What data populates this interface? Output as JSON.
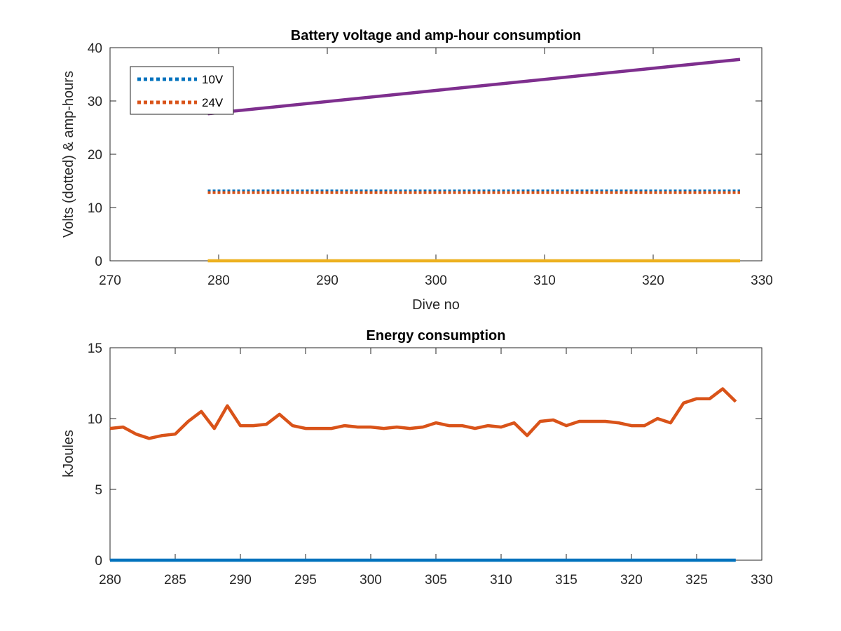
{
  "chart_data": [
    {
      "type": "line",
      "title": "Battery voltage and amp-hour consumption",
      "xlabel": "Dive no",
      "ylabel": "Volts (dotted) & amp-hours",
      "xlim": [
        270,
        330
      ],
      "ylim": [
        0,
        40
      ],
      "xticks": [
        270,
        280,
        290,
        300,
        310,
        320,
        330
      ],
      "yticks": [
        0,
        10,
        20,
        30,
        40
      ],
      "grid": false,
      "legend_position": "top-left",
      "series": [
        {
          "name": "10V",
          "style": "dotted",
          "color": "#0072BD",
          "x": [
            279,
            328
          ],
          "y": [
            13.1,
            13.1
          ]
        },
        {
          "name": "24V",
          "style": "dotted",
          "color": "#D95319",
          "x": [
            279,
            328
          ],
          "y": [
            12.8,
            12.8
          ]
        },
        {
          "style": "solid",
          "color": "#EDB120",
          "x": [
            279,
            328
          ],
          "y": [
            0,
            0
          ]
        },
        {
          "style": "solid",
          "color": "#7E2F8E",
          "x": [
            279,
            328
          ],
          "y": [
            27.6,
            37.8
          ]
        }
      ]
    },
    {
      "type": "line",
      "title": "Energy consumption",
      "xlabel": "",
      "ylabel": "kJoules",
      "xlim": [
        280,
        330
      ],
      "ylim": [
        0,
        15
      ],
      "xticks": [
        280,
        285,
        290,
        295,
        300,
        305,
        310,
        315,
        320,
        325,
        330
      ],
      "yticks": [
        0,
        5,
        10,
        15
      ],
      "grid": false,
      "series": [
        {
          "style": "solid",
          "color": "#0072BD",
          "x": [
            280,
            328
          ],
          "y": [
            0,
            0
          ]
        },
        {
          "style": "solid",
          "color": "#D95319",
          "x": [
            280,
            281,
            282,
            283,
            284,
            285,
            286,
            287,
            288,
            289,
            290,
            291,
            292,
            293,
            294,
            295,
            296,
            297,
            298,
            299,
            300,
            301,
            302,
            303,
            304,
            305,
            306,
            307,
            308,
            309,
            310,
            311,
            312,
            313,
            314,
            315,
            316,
            317,
            318,
            319,
            320,
            321,
            322,
            323,
            324,
            325,
            326,
            327,
            328
          ],
          "y": [
            9.3,
            9.4,
            8.9,
            8.6,
            8.8,
            8.9,
            9.8,
            10.5,
            9.3,
            10.9,
            9.5,
            9.5,
            9.6,
            10.3,
            9.5,
            9.3,
            9.3,
            9.3,
            9.5,
            9.4,
            9.4,
            9.3,
            9.4,
            9.3,
            9.4,
            9.7,
            9.5,
            9.5,
            9.3,
            9.5,
            9.4,
            9.7,
            8.8,
            9.8,
            9.9,
            9.5,
            9.8,
            9.8,
            9.8,
            9.7,
            9.5,
            9.5,
            10.0,
            9.7,
            11.1,
            11.4,
            11.4,
            12.1,
            11.2
          ]
        }
      ]
    }
  ]
}
